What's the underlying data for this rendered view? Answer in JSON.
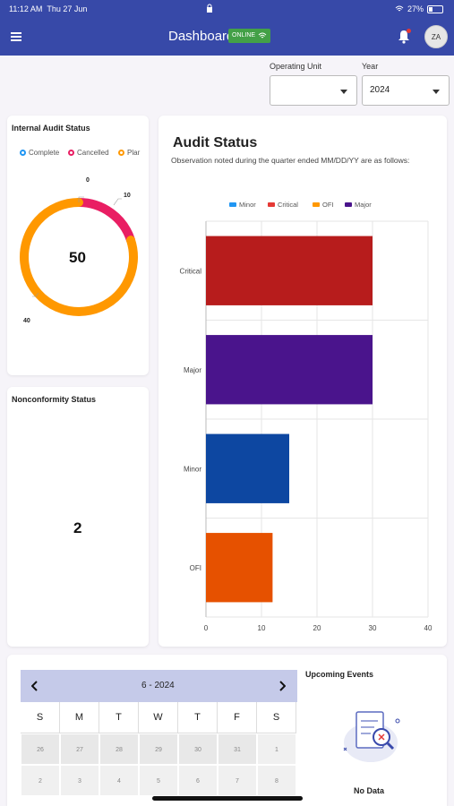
{
  "status_bar": {
    "time": "11:12 AM",
    "date": "Thu 27 Jun",
    "battery": "27%"
  },
  "header": {
    "title": "Dashboard",
    "online_label": "ONLINE",
    "avatar_initials": "ZA"
  },
  "filters": {
    "operating_unit": {
      "label": "Operating Unit",
      "value": ""
    },
    "year": {
      "label": "Year",
      "value": "2024"
    }
  },
  "internal_audit": {
    "title": "Internal Audit Status",
    "legend": [
      {
        "label": "Complete",
        "color": "#2196f3"
      },
      {
        "label": "Cancelled",
        "color": "#e91e63"
      },
      {
        "label": "Plar",
        "color": "#ff9800"
      }
    ],
    "total": "50",
    "labels": {
      "complete": "0",
      "cancelled": "10",
      "planned": "40"
    }
  },
  "nonconformity": {
    "title": "Nonconformity Status",
    "value": "2"
  },
  "audit_status": {
    "title": "Audit Status",
    "subtitle": "Observation noted during the quarter ended MM/DD/YY are as follows:",
    "legend": [
      {
        "label": "Minor",
        "color": "#2196f3"
      },
      {
        "label": "Critical",
        "color": "#e53935"
      },
      {
        "label": "OFI",
        "color": "#ff9800"
      },
      {
        "label": "Major",
        "color": "#4a148c"
      }
    ]
  },
  "chart_data": [
    {
      "type": "pie",
      "title": "Internal Audit Status",
      "categories": [
        "Complete",
        "Cancelled",
        "Plar"
      ],
      "values": [
        0,
        10,
        40
      ],
      "colors": [
        "#2196f3",
        "#e91e63",
        "#ff9800"
      ],
      "center_label": "50"
    },
    {
      "type": "bar",
      "orientation": "horizontal",
      "title": "Audit Status",
      "categories": [
        "Critical",
        "Major",
        "Minor",
        "OFI"
      ],
      "values": [
        30,
        30,
        15,
        12
      ],
      "colors": [
        "#b71c1c",
        "#4a148c",
        "#0d47a1",
        "#e65100"
      ],
      "xlim": [
        0,
        40
      ],
      "xticks": [
        "0",
        "10",
        "20",
        "30",
        "40"
      ],
      "grid": true
    }
  ],
  "calendar": {
    "month_label": "6 - 2024",
    "weekdays": [
      "S",
      "M",
      "T",
      "W",
      "T",
      "F",
      "S"
    ],
    "weeks": [
      [
        "26",
        "27",
        "28",
        "29",
        "30",
        "31",
        "1"
      ],
      [
        "2",
        "3",
        "4",
        "5",
        "6",
        "7",
        "8"
      ]
    ]
  },
  "upcoming_events": {
    "title": "Upcoming Events",
    "empty_text": "No Data"
  }
}
